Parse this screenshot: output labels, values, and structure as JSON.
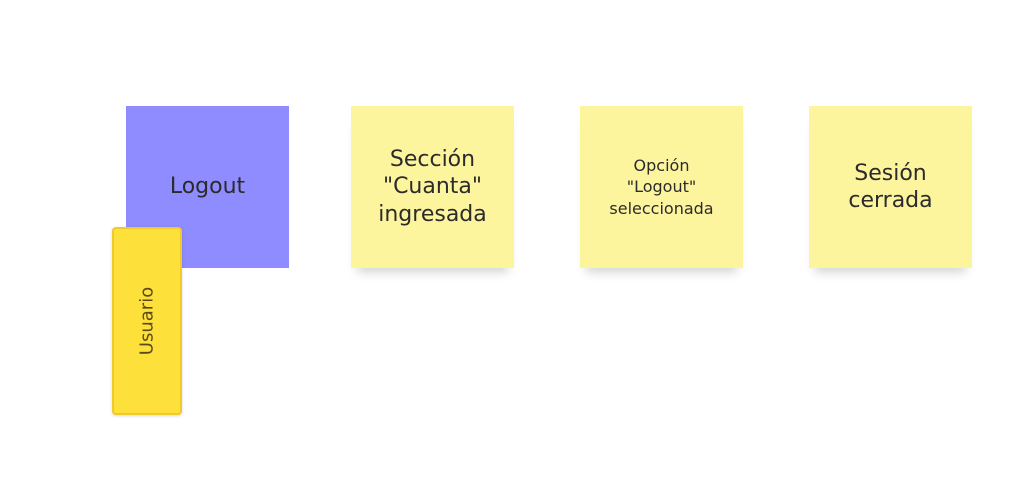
{
  "notes": {
    "logout": {
      "label": "Logout",
      "color": "#8f8cff"
    },
    "seccion": {
      "label": "Sección\n\"Cuanta\"\ningresada",
      "color": "#fdf49e"
    },
    "opcion": {
      "label": "Opción\n\"Logout\"\nseleccionada",
      "color": "#fdf49e"
    },
    "sesion": {
      "label": "Sesión\ncerrada",
      "color": "#fdf49e"
    }
  },
  "actor": {
    "label": "Usuario",
    "color": "#fee03a"
  }
}
